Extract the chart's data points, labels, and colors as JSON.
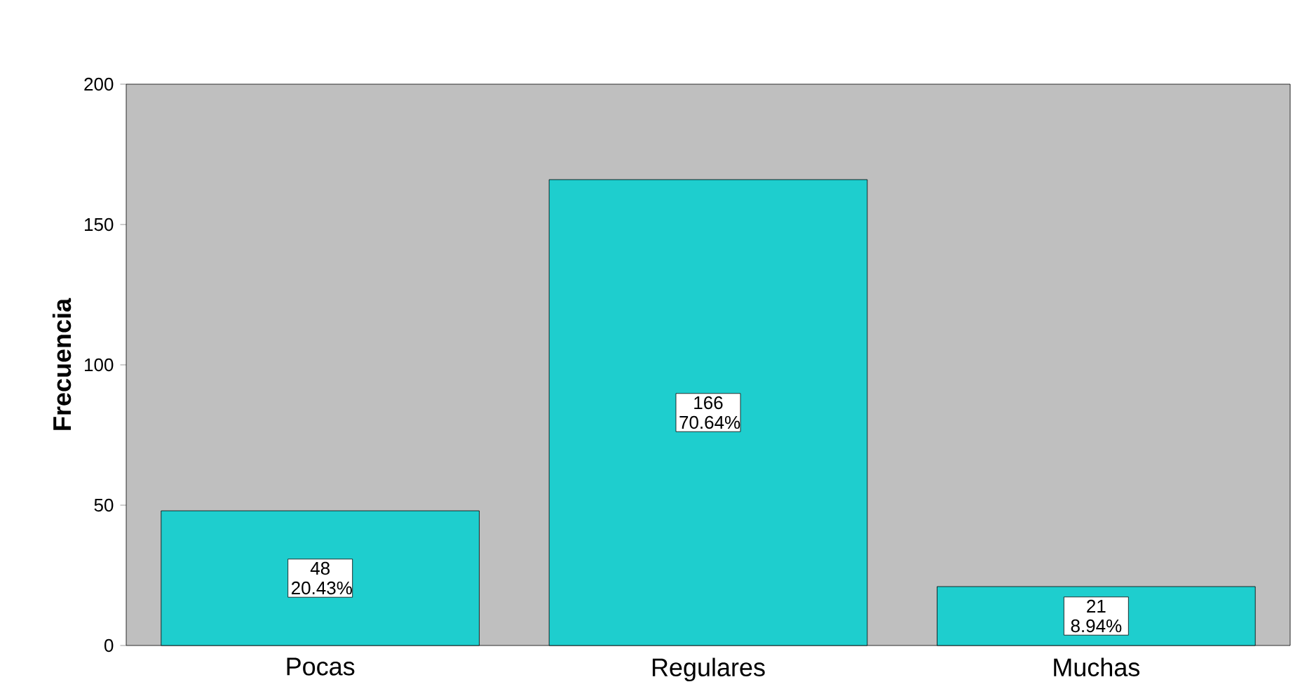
{
  "chart_data": {
    "type": "bar",
    "ylabel": "Frecuencia",
    "categories": [
      "Pocas",
      "Regulares",
      "Muchas"
    ],
    "values": [
      48,
      166,
      21
    ],
    "value_labels": [
      "48 20.43%",
      "166 70.64%",
      "21 8.94%"
    ],
    "color": "#1ecece",
    "ylim": [
      0,
      200
    ],
    "yticks": [
      0,
      50,
      100,
      150,
      200
    ],
    "grid": false
  }
}
